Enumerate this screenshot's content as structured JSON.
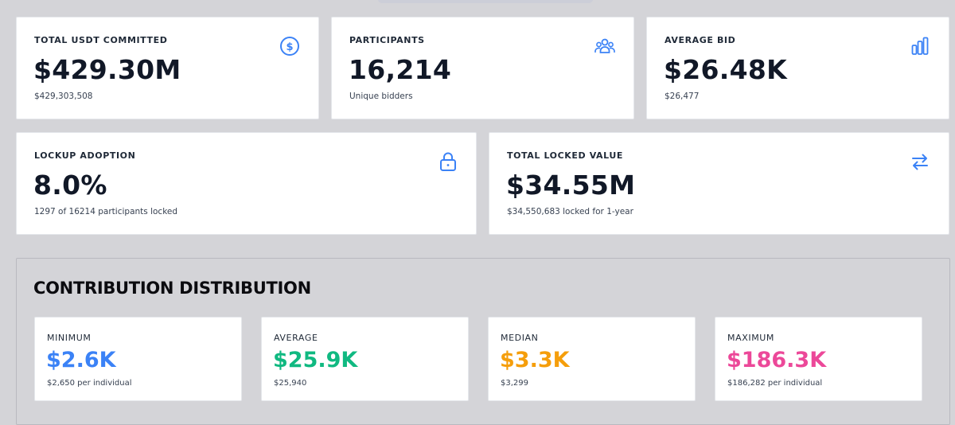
{
  "stats_row1": [
    {
      "label": "TOTAL USDT COMMITTED",
      "value": "$429.30M",
      "sub": "$429,303,508",
      "icon": "dollar-circle-icon"
    },
    {
      "label": "PARTICIPANTS",
      "value": "16,214",
      "sub": "Unique bidders",
      "icon": "users-icon"
    },
    {
      "label": "AVERAGE BID",
      "value": "$26.48K",
      "sub": "$26,477",
      "icon": "bar-chart-icon"
    }
  ],
  "stats_row2": [
    {
      "label": "LOCKUP ADOPTION",
      "value": "8.0%",
      "sub": "1297 of 16214 participants locked",
      "icon": "lock-icon"
    },
    {
      "label": "TOTAL LOCKED VALUE",
      "value": "$34.55M",
      "sub": "$34,550,683 locked for 1-year",
      "icon": "swap-arrows-icon"
    }
  ],
  "distribution": {
    "title": "CONTRIBUTION DISTRIBUTION",
    "items": [
      {
        "label": "MINIMUM",
        "value": "$2.6K",
        "sub": "$2,650 per individual",
        "color": "#3b82f6"
      },
      {
        "label": "AVERAGE",
        "value": "$25.9K",
        "sub": "$25,940",
        "color": "#10b981"
      },
      {
        "label": "MEDIAN",
        "value": "$3.3K",
        "sub": "$3,299",
        "color": "#f59e0b"
      },
      {
        "label": "MAXIMUM",
        "value": "$186.3K",
        "sub": "$186,282 per individual",
        "color": "#ec4899"
      }
    ]
  },
  "colors": {
    "icon": "#3b82f6"
  }
}
